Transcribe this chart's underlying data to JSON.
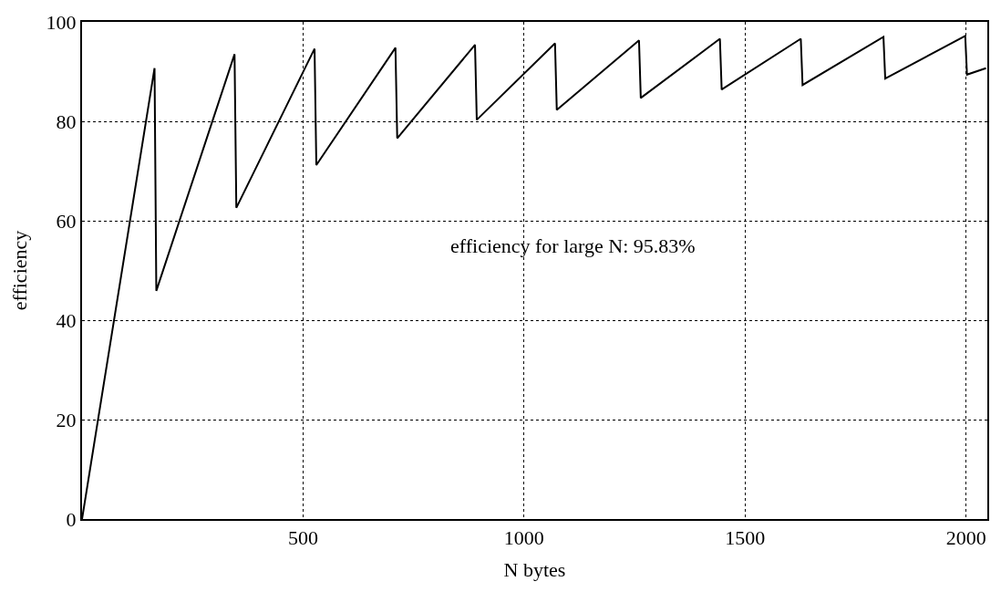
{
  "chart_data": {
    "type": "line",
    "xlabel": "N bytes",
    "ylabel": "efficiency",
    "annotations": [
      "efficiency for large N: 95.83%"
    ],
    "x": [
      0,
      164,
      168,
      345,
      349,
      526,
      530,
      709,
      713,
      889,
      893,
      1070,
      1074,
      1260,
      1264,
      1443,
      1447,
      1626,
      1630,
      1813,
      1817,
      1998,
      2002,
      2045
    ],
    "series": [
      {
        "color": "#000000",
        "values": [
          0,
          90.7,
          45.9,
          93.5,
          62.6,
          94.6,
          71.2,
          94.8,
          76.6,
          95.4,
          80.3,
          95.7,
          82.3,
          96.3,
          84.7,
          96.6,
          86.4,
          96.6,
          87.3,
          97.0,
          88.6,
          97.2,
          89.4,
          90.7
        ]
      }
    ],
    "xlim": [
      0,
      2048
    ],
    "xticks": [
      500,
      1000,
      1500,
      2000
    ],
    "ylim": [
      0,
      100
    ],
    "yticks": [
      0,
      20,
      40,
      60,
      80,
      100
    ],
    "grid": true,
    "line_style": "solid"
  }
}
